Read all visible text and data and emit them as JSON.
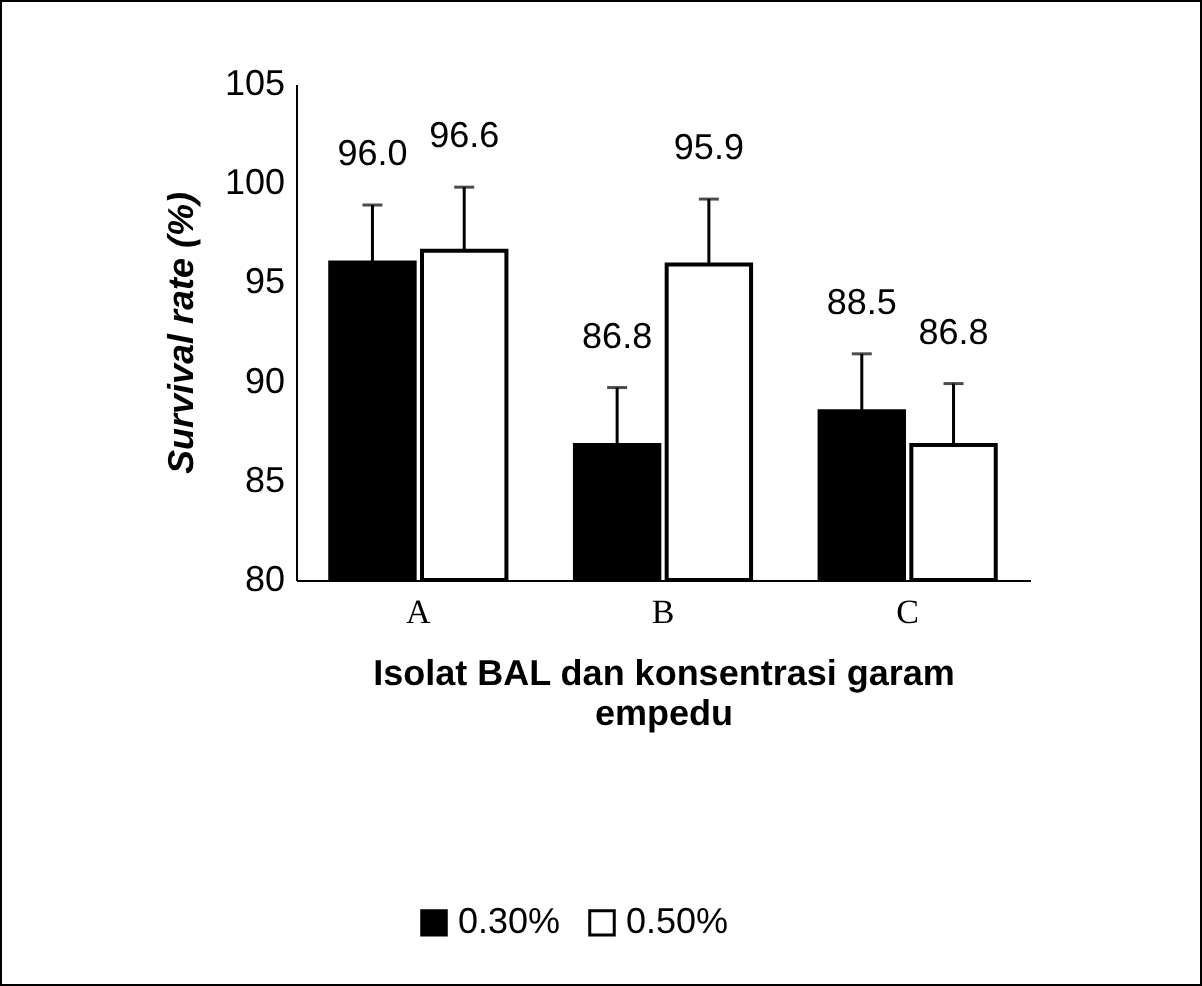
{
  "chart_data": {
    "type": "bar",
    "categories": [
      "A",
      "B",
      "C"
    ],
    "xlabel": "Isolat BAL dan konsentrasi garam empedu",
    "ylabel": "Survival rate (%)",
    "ylim": [
      80,
      105
    ],
    "yticks": [
      80,
      85,
      90,
      95,
      100,
      105
    ],
    "legend": "bottom",
    "grid": false,
    "series": [
      {
        "name": "0.30%",
        "color": "#000000",
        "values": [
          96.0,
          86.8,
          88.5
        ],
        "value_labels": [
          "96.0",
          "86.8",
          "88.5"
        ],
        "errors": [
          [
            96.0,
            98.9
          ],
          [
            86.8,
            89.7
          ],
          [
            88.5,
            91.4
          ]
        ]
      },
      {
        "name": "0.50%",
        "color": "#ffffff",
        "values": [
          96.6,
          95.9,
          86.8
        ],
        "value_labels": [
          "96.6",
          "95.9",
          "86.8"
        ],
        "errors": [
          [
            96.6,
            99.8
          ],
          [
            95.9,
            99.2
          ],
          [
            86.8,
            89.9
          ]
        ]
      }
    ]
  }
}
